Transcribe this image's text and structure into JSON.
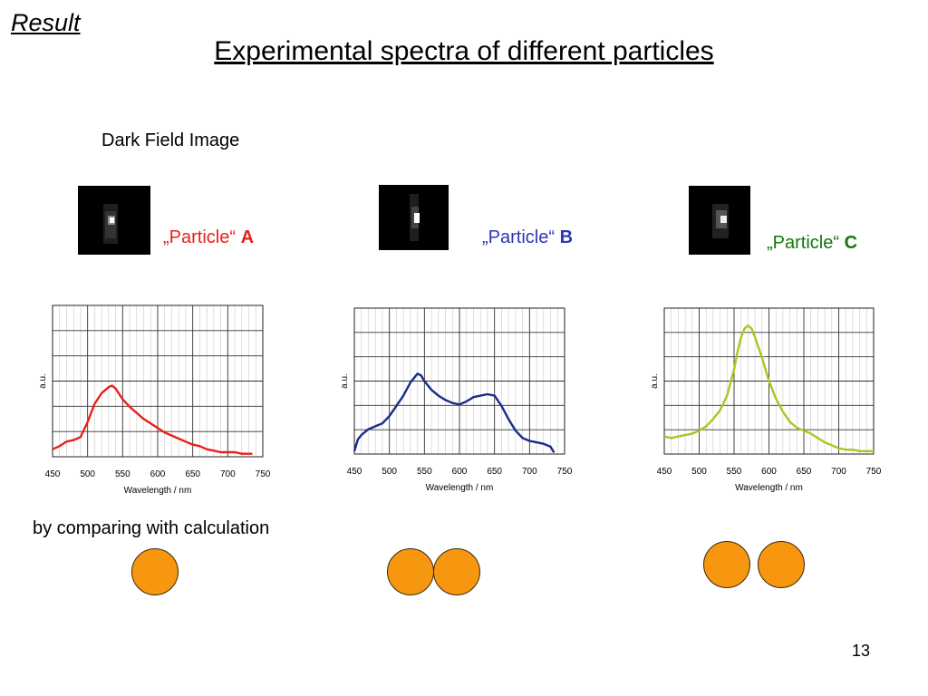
{
  "header": {
    "result": "Result",
    "title": "Experimental spectra of different particles"
  },
  "dark_field_label": "Dark Field Image",
  "particles": [
    {
      "prefix": "„Particle“",
      "letter": "A",
      "color": "#e8201c"
    },
    {
      "prefix": "„Particle“",
      "letter": "B",
      "color": "#2c36b5"
    },
    {
      "prefix": "„Particle“",
      "letter": "C",
      "color": "#0e7a0e"
    }
  ],
  "compare_text": "by comparing with calculation",
  "page_number": "13",
  "sphere_color": "#f7960f",
  "chart_data": [
    {
      "type": "line",
      "title": "",
      "xlabel": "Wavelength / nm",
      "ylabel": "a.u.",
      "xlim": [
        450,
        750
      ],
      "xticks": [
        "450",
        "500",
        "550",
        "600",
        "650",
        "700",
        "750"
      ],
      "grid": true,
      "series": [
        {
          "color": "#e8201c",
          "x": [
            450,
            460,
            470,
            480,
            490,
            500,
            510,
            520,
            530,
            535,
            540,
            550,
            560,
            570,
            580,
            590,
            600,
            610,
            620,
            630,
            640,
            650,
            660,
            670,
            680,
            690,
            700,
            710,
            720,
            730,
            735
          ],
          "y": [
            0.05,
            0.07,
            0.1,
            0.11,
            0.13,
            0.23,
            0.35,
            0.42,
            0.46,
            0.47,
            0.45,
            0.38,
            0.33,
            0.29,
            0.25,
            0.22,
            0.19,
            0.16,
            0.14,
            0.12,
            0.1,
            0.08,
            0.07,
            0.05,
            0.04,
            0.03,
            0.03,
            0.03,
            0.02,
            0.02,
            0.02
          ]
        }
      ]
    },
    {
      "type": "line",
      "title": "",
      "xlabel": "Wavelength / nm",
      "ylabel": "a.u.",
      "xlim": [
        450,
        750
      ],
      "xticks": [
        "450",
        "500",
        "550",
        "600",
        "650",
        "700",
        "750"
      ],
      "grid": true,
      "series": [
        {
          "color": "#1a2a8a",
          "x": [
            450,
            455,
            460,
            470,
            480,
            490,
            500,
            510,
            520,
            530,
            540,
            545,
            550,
            560,
            570,
            580,
            590,
            600,
            610,
            620,
            630,
            640,
            650,
            660,
            670,
            680,
            690,
            700,
            710,
            720,
            730,
            735
          ],
          "y": [
            0.02,
            0.1,
            0.13,
            0.17,
            0.19,
            0.21,
            0.26,
            0.33,
            0.4,
            0.49,
            0.55,
            0.54,
            0.5,
            0.44,
            0.4,
            0.37,
            0.35,
            0.34,
            0.36,
            0.39,
            0.4,
            0.41,
            0.4,
            0.33,
            0.24,
            0.16,
            0.11,
            0.09,
            0.08,
            0.07,
            0.05,
            0.01
          ]
        }
      ]
    },
    {
      "type": "line",
      "title": "",
      "xlabel": "Wavelength / nm",
      "ylabel": "a.u.",
      "xlim": [
        450,
        750
      ],
      "xticks": [
        "450",
        "500",
        "550",
        "600",
        "650",
        "700",
        "750"
      ],
      "grid": true,
      "series": [
        {
          "color": "#a8c81e",
          "x": [
            450,
            460,
            470,
            480,
            490,
            500,
            510,
            520,
            530,
            540,
            550,
            555,
            560,
            565,
            570,
            575,
            580,
            590,
            600,
            610,
            620,
            630,
            640,
            650,
            660,
            670,
            680,
            690,
            700,
            710,
            720,
            730,
            740,
            750
          ],
          "y": [
            0.12,
            0.11,
            0.12,
            0.13,
            0.14,
            0.16,
            0.19,
            0.24,
            0.3,
            0.4,
            0.58,
            0.7,
            0.8,
            0.86,
            0.88,
            0.86,
            0.8,
            0.66,
            0.5,
            0.38,
            0.29,
            0.22,
            0.18,
            0.16,
            0.14,
            0.11,
            0.08,
            0.06,
            0.04,
            0.03,
            0.03,
            0.02,
            0.02,
            0.02
          ]
        }
      ]
    }
  ]
}
